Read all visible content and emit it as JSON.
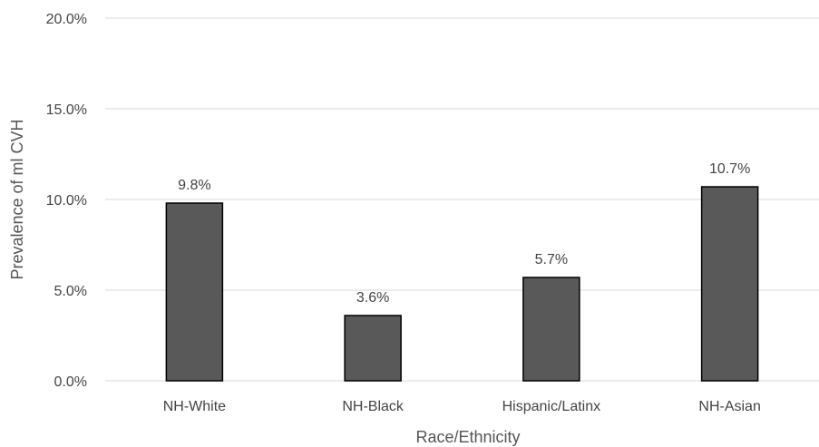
{
  "chart_data": {
    "type": "bar",
    "title": "",
    "xlabel": "Race/Ethnicity",
    "ylabel": "Prevalence of ml CVH",
    "ylim": [
      0,
      20
    ],
    "yticks": [
      0,
      5,
      10,
      15,
      20
    ],
    "ytick_labels": [
      "0.0%",
      "5.0%",
      "10.0%",
      "15.0%",
      "20.0%"
    ],
    "categories": [
      "NH-White",
      "NH-Black",
      "Hispanic/Latinx",
      "NH-Asian"
    ],
    "values": [
      9.8,
      3.6,
      5.7,
      10.7
    ],
    "data_labels": [
      "9.8%",
      "3.6%",
      "5.7%",
      "10.7%"
    ],
    "grid": true,
    "legend": "none",
    "colors": {
      "bar_fill": "#595959",
      "bar_stroke": "#000000",
      "grid": "#d9d9d9",
      "text": "#444444"
    }
  }
}
